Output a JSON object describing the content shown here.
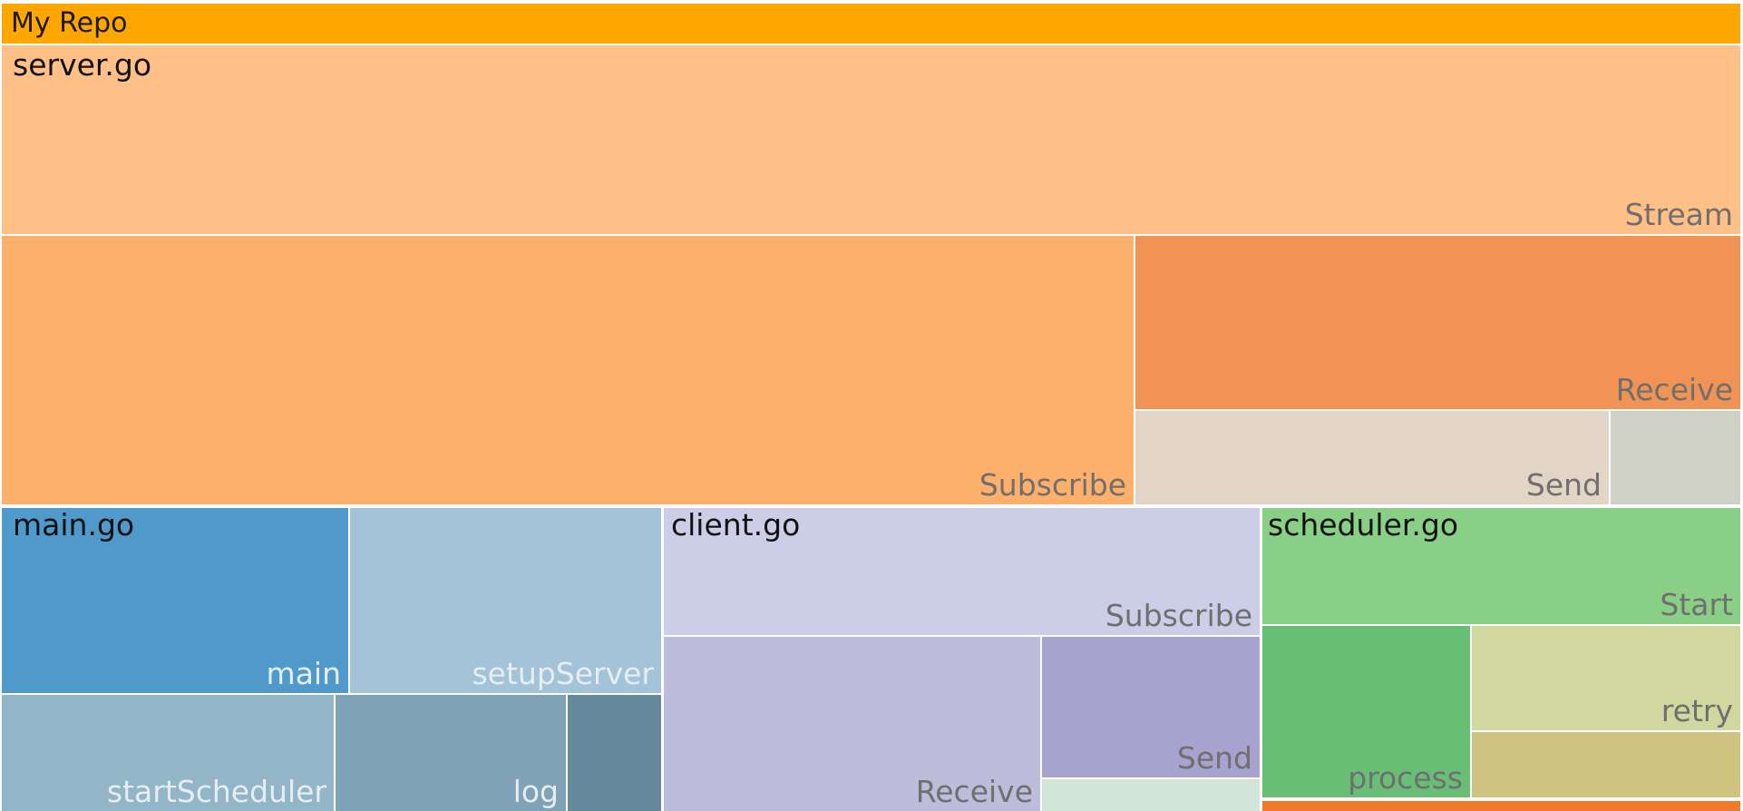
{
  "chart_data": {
    "type": "treemap",
    "title": "My Repo",
    "root_color": "#ffa600",
    "groups": [
      {
        "name": "server.go",
        "leaves": [
          {
            "name": "Stream",
            "color": "#fec087",
            "value": 31.2
          },
          {
            "name": "Subscribe",
            "color": "#fdaf6c",
            "value": 28.9
          },
          {
            "name": "Receive",
            "color": "#f19355",
            "value": 13.6
          },
          {
            "name": "Send",
            "color": "#e2d5c6",
            "value": 7.1
          },
          {
            "name": "",
            "color": "#cfd0c6",
            "value": 2.0
          }
        ]
      },
      {
        "name": "main.go",
        "leaves": [
          {
            "name": "main",
            "color": "#4f99cb",
            "value": 6.0
          },
          {
            "name": "setupServer",
            "color": "#a2c3d8",
            "value": 5.4
          },
          {
            "name": "startScheduler",
            "color": "#93b5c8",
            "value": 3.9
          },
          {
            "name": "log",
            "color": "#7fa2b6",
            "value": 2.7
          },
          {
            "name": "",
            "color": "#66889b",
            "value": 1.1
          }
        ]
      },
      {
        "name": "client.go",
        "leaves": [
          {
            "name": "Subscribe",
            "color": "#cccde6",
            "value": 7.2
          },
          {
            "name": "Receive",
            "color": "#bdbcdb",
            "value": 6.7
          },
          {
            "name": "Send",
            "color": "#a8a2ce",
            "value": 2.9
          },
          {
            "name": "",
            "color": "#d3e4d8",
            "value": 0.7
          }
        ]
      },
      {
        "name": "scheduler.go",
        "leaves": [
          {
            "name": "Start",
            "color": "#8acf86",
            "value": 5.1
          },
          {
            "name": "process",
            "color": "#69be76",
            "value": 3.4
          },
          {
            "name": "retry",
            "color": "#d0d79f",
            "value": 2.2
          },
          {
            "name": "",
            "color": "#cfc482",
            "value": 1.3
          }
        ]
      },
      {
        "name": "",
        "color": "#f07a2a",
        "leaves": []
      }
    ]
  }
}
